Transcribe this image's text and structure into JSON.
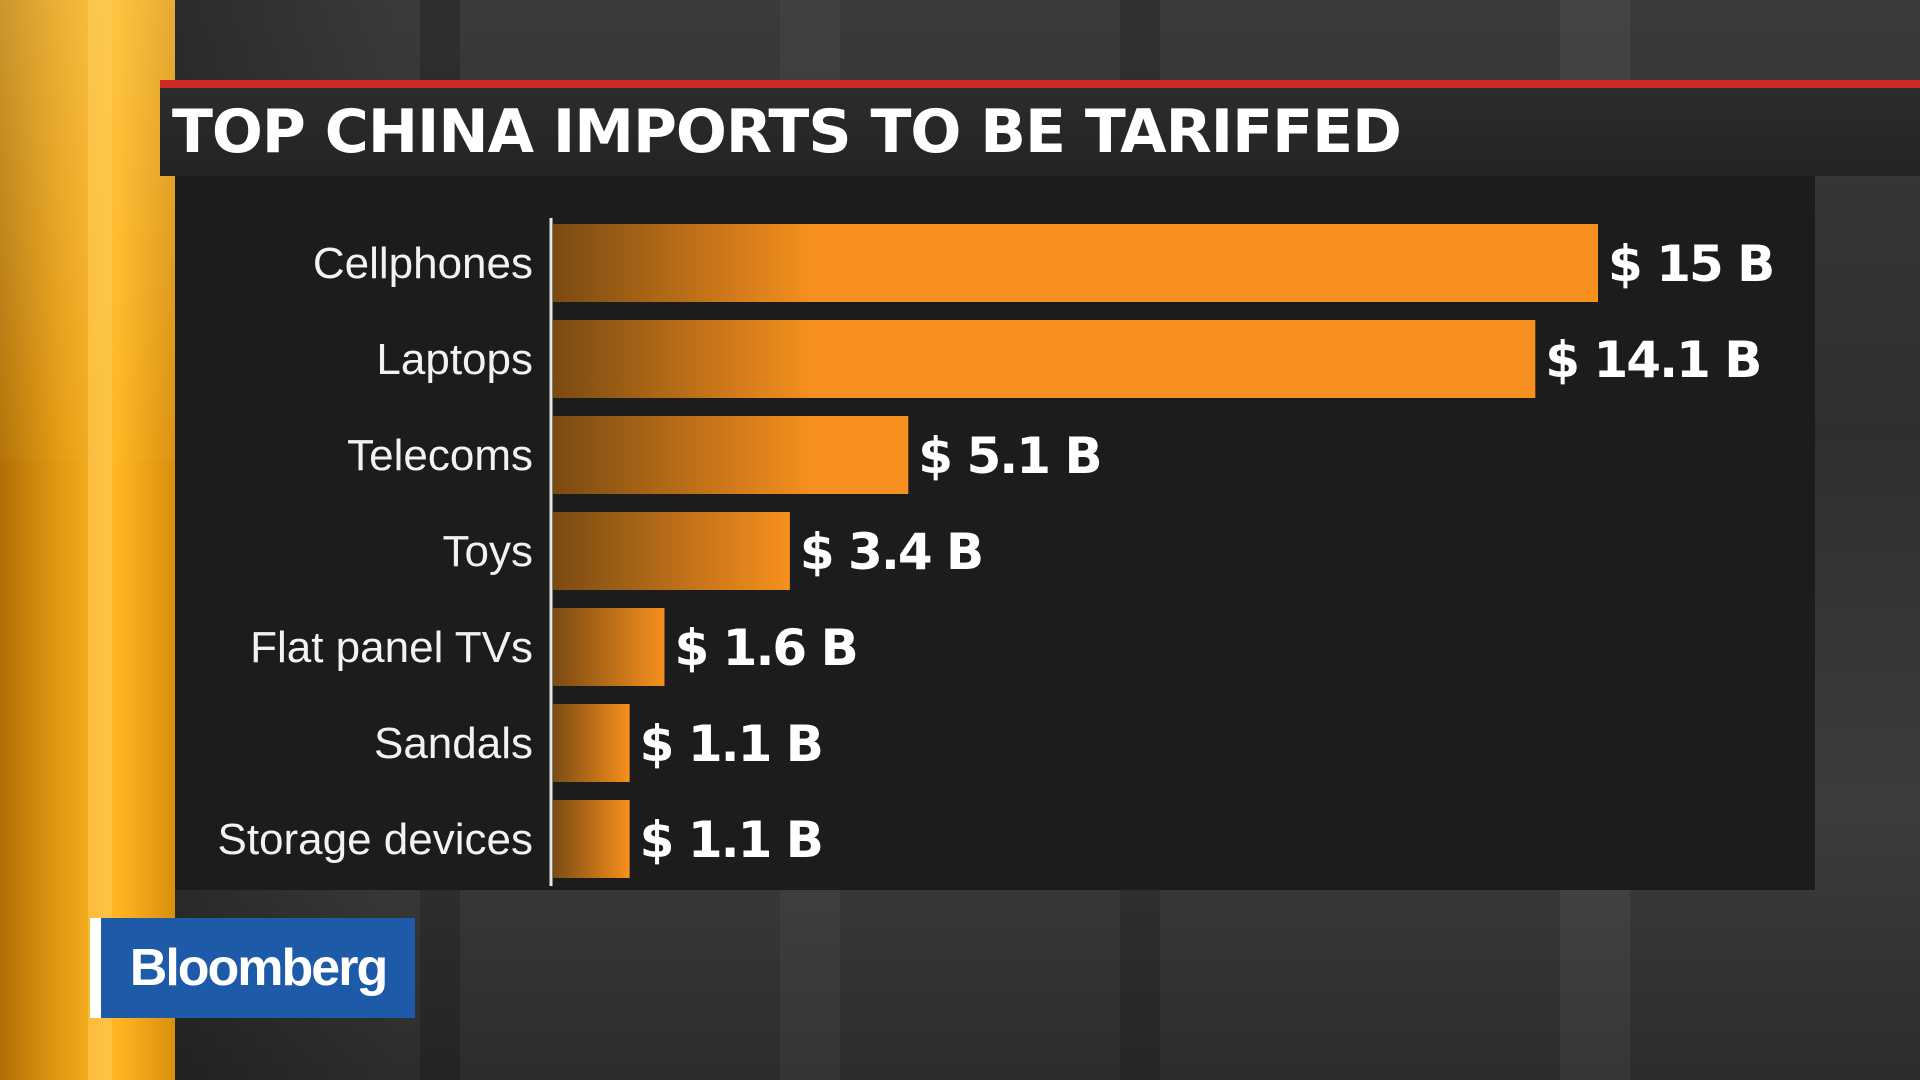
{
  "title": "TOP CHINA IMPORTS TO BE TARIFFED",
  "brand": "Bloomberg",
  "colors": {
    "bar": "#f7901e",
    "bar_shadow": "#7a4a12",
    "title_accent": "#cf2a2a",
    "logo_bg": "#1d5aa8",
    "panel_bg": "#1c1c1c",
    "left_panel": "#f5ad20"
  },
  "chart_data": {
    "type": "bar",
    "orientation": "horizontal",
    "title": "TOP CHINA IMPORTS TO BE TARIFFED",
    "xlabel": "",
    "ylabel": "",
    "unit": "billion USD",
    "xlim": [
      0,
      15
    ],
    "grid": false,
    "categories": [
      "Cellphones",
      "Laptops",
      "Telecoms",
      "Toys",
      "Flat panel TVs",
      "Sandals",
      "Storage devices"
    ],
    "values": [
      15,
      14.1,
      5.1,
      3.4,
      1.6,
      1.1,
      1.1
    ],
    "value_labels": [
      "$ 15 B",
      "$ 14.1 B",
      "$ 5.1 B",
      "$ 3.4 B",
      "$ 1.6 B",
      "$ 1.1 B",
      "$ 1.1 B"
    ]
  }
}
